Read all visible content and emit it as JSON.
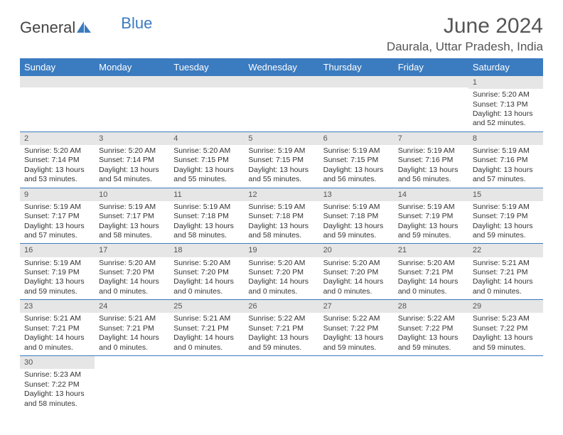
{
  "logo": {
    "part1": "General",
    "part2": "Blue"
  },
  "title": "June 2024",
  "location": "Daurala, Uttar Pradesh, India",
  "colors": {
    "header_bg": "#3b7bbf",
    "header_text": "#ffffff",
    "daynum_bg": "#e6e6e6",
    "cell_border": "#3b7bbf",
    "text": "#333333"
  },
  "weekdays": [
    "Sunday",
    "Monday",
    "Tuesday",
    "Wednesday",
    "Thursday",
    "Friday",
    "Saturday"
  ],
  "weeks": [
    [
      {
        "n": "",
        "l1": "",
        "l2": "",
        "l3": "",
        "l4": ""
      },
      {
        "n": "",
        "l1": "",
        "l2": "",
        "l3": "",
        "l4": ""
      },
      {
        "n": "",
        "l1": "",
        "l2": "",
        "l3": "",
        "l4": ""
      },
      {
        "n": "",
        "l1": "",
        "l2": "",
        "l3": "",
        "l4": ""
      },
      {
        "n": "",
        "l1": "",
        "l2": "",
        "l3": "",
        "l4": ""
      },
      {
        "n": "",
        "l1": "",
        "l2": "",
        "l3": "",
        "l4": ""
      },
      {
        "n": "1",
        "l1": "Sunrise: 5:20 AM",
        "l2": "Sunset: 7:13 PM",
        "l3": "Daylight: 13 hours",
        "l4": "and 52 minutes."
      }
    ],
    [
      {
        "n": "2",
        "l1": "Sunrise: 5:20 AM",
        "l2": "Sunset: 7:14 PM",
        "l3": "Daylight: 13 hours",
        "l4": "and 53 minutes."
      },
      {
        "n": "3",
        "l1": "Sunrise: 5:20 AM",
        "l2": "Sunset: 7:14 PM",
        "l3": "Daylight: 13 hours",
        "l4": "and 54 minutes."
      },
      {
        "n": "4",
        "l1": "Sunrise: 5:20 AM",
        "l2": "Sunset: 7:15 PM",
        "l3": "Daylight: 13 hours",
        "l4": "and 55 minutes."
      },
      {
        "n": "5",
        "l1": "Sunrise: 5:19 AM",
        "l2": "Sunset: 7:15 PM",
        "l3": "Daylight: 13 hours",
        "l4": "and 55 minutes."
      },
      {
        "n": "6",
        "l1": "Sunrise: 5:19 AM",
        "l2": "Sunset: 7:15 PM",
        "l3": "Daylight: 13 hours",
        "l4": "and 56 minutes."
      },
      {
        "n": "7",
        "l1": "Sunrise: 5:19 AM",
        "l2": "Sunset: 7:16 PM",
        "l3": "Daylight: 13 hours",
        "l4": "and 56 minutes."
      },
      {
        "n": "8",
        "l1": "Sunrise: 5:19 AM",
        "l2": "Sunset: 7:16 PM",
        "l3": "Daylight: 13 hours",
        "l4": "and 57 minutes."
      }
    ],
    [
      {
        "n": "9",
        "l1": "Sunrise: 5:19 AM",
        "l2": "Sunset: 7:17 PM",
        "l3": "Daylight: 13 hours",
        "l4": "and 57 minutes."
      },
      {
        "n": "10",
        "l1": "Sunrise: 5:19 AM",
        "l2": "Sunset: 7:17 PM",
        "l3": "Daylight: 13 hours",
        "l4": "and 58 minutes."
      },
      {
        "n": "11",
        "l1": "Sunrise: 5:19 AM",
        "l2": "Sunset: 7:18 PM",
        "l3": "Daylight: 13 hours",
        "l4": "and 58 minutes."
      },
      {
        "n": "12",
        "l1": "Sunrise: 5:19 AM",
        "l2": "Sunset: 7:18 PM",
        "l3": "Daylight: 13 hours",
        "l4": "and 58 minutes."
      },
      {
        "n": "13",
        "l1": "Sunrise: 5:19 AM",
        "l2": "Sunset: 7:18 PM",
        "l3": "Daylight: 13 hours",
        "l4": "and 59 minutes."
      },
      {
        "n": "14",
        "l1": "Sunrise: 5:19 AM",
        "l2": "Sunset: 7:19 PM",
        "l3": "Daylight: 13 hours",
        "l4": "and 59 minutes."
      },
      {
        "n": "15",
        "l1": "Sunrise: 5:19 AM",
        "l2": "Sunset: 7:19 PM",
        "l3": "Daylight: 13 hours",
        "l4": "and 59 minutes."
      }
    ],
    [
      {
        "n": "16",
        "l1": "Sunrise: 5:19 AM",
        "l2": "Sunset: 7:19 PM",
        "l3": "Daylight: 13 hours",
        "l4": "and 59 minutes."
      },
      {
        "n": "17",
        "l1": "Sunrise: 5:20 AM",
        "l2": "Sunset: 7:20 PM",
        "l3": "Daylight: 14 hours",
        "l4": "and 0 minutes."
      },
      {
        "n": "18",
        "l1": "Sunrise: 5:20 AM",
        "l2": "Sunset: 7:20 PM",
        "l3": "Daylight: 14 hours",
        "l4": "and 0 minutes."
      },
      {
        "n": "19",
        "l1": "Sunrise: 5:20 AM",
        "l2": "Sunset: 7:20 PM",
        "l3": "Daylight: 14 hours",
        "l4": "and 0 minutes."
      },
      {
        "n": "20",
        "l1": "Sunrise: 5:20 AM",
        "l2": "Sunset: 7:20 PM",
        "l3": "Daylight: 14 hours",
        "l4": "and 0 minutes."
      },
      {
        "n": "21",
        "l1": "Sunrise: 5:20 AM",
        "l2": "Sunset: 7:21 PM",
        "l3": "Daylight: 14 hours",
        "l4": "and 0 minutes."
      },
      {
        "n": "22",
        "l1": "Sunrise: 5:21 AM",
        "l2": "Sunset: 7:21 PM",
        "l3": "Daylight: 14 hours",
        "l4": "and 0 minutes."
      }
    ],
    [
      {
        "n": "23",
        "l1": "Sunrise: 5:21 AM",
        "l2": "Sunset: 7:21 PM",
        "l3": "Daylight: 14 hours",
        "l4": "and 0 minutes."
      },
      {
        "n": "24",
        "l1": "Sunrise: 5:21 AM",
        "l2": "Sunset: 7:21 PM",
        "l3": "Daylight: 14 hours",
        "l4": "and 0 minutes."
      },
      {
        "n": "25",
        "l1": "Sunrise: 5:21 AM",
        "l2": "Sunset: 7:21 PM",
        "l3": "Daylight: 14 hours",
        "l4": "and 0 minutes."
      },
      {
        "n": "26",
        "l1": "Sunrise: 5:22 AM",
        "l2": "Sunset: 7:21 PM",
        "l3": "Daylight: 13 hours",
        "l4": "and 59 minutes."
      },
      {
        "n": "27",
        "l1": "Sunrise: 5:22 AM",
        "l2": "Sunset: 7:22 PM",
        "l3": "Daylight: 13 hours",
        "l4": "and 59 minutes."
      },
      {
        "n": "28",
        "l1": "Sunrise: 5:22 AM",
        "l2": "Sunset: 7:22 PM",
        "l3": "Daylight: 13 hours",
        "l4": "and 59 minutes."
      },
      {
        "n": "29",
        "l1": "Sunrise: 5:23 AM",
        "l2": "Sunset: 7:22 PM",
        "l3": "Daylight: 13 hours",
        "l4": "and 59 minutes."
      }
    ],
    [
      {
        "n": "30",
        "l1": "Sunrise: 5:23 AM",
        "l2": "Sunset: 7:22 PM",
        "l3": "Daylight: 13 hours",
        "l4": "and 58 minutes."
      },
      {
        "n": "",
        "l1": "",
        "l2": "",
        "l3": "",
        "l4": ""
      },
      {
        "n": "",
        "l1": "",
        "l2": "",
        "l3": "",
        "l4": ""
      },
      {
        "n": "",
        "l1": "",
        "l2": "",
        "l3": "",
        "l4": ""
      },
      {
        "n": "",
        "l1": "",
        "l2": "",
        "l3": "",
        "l4": ""
      },
      {
        "n": "",
        "l1": "",
        "l2": "",
        "l3": "",
        "l4": ""
      },
      {
        "n": "",
        "l1": "",
        "l2": "",
        "l3": "",
        "l4": ""
      }
    ]
  ]
}
